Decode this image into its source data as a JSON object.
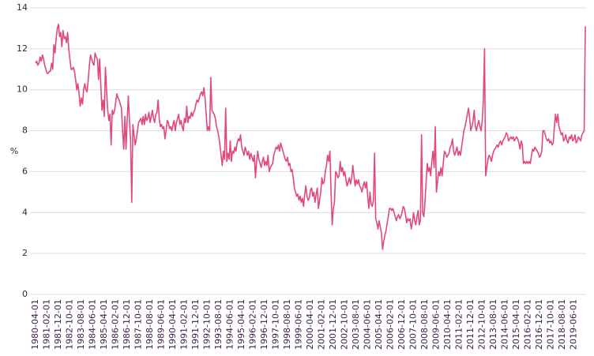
{
  "chart_data": {
    "type": "line",
    "y_label": "%",
    "color": "#e14a78",
    "grid": true,
    "ylim": [
      0,
      14
    ],
    "yticks": [
      0,
      2,
      4,
      6,
      8,
      10,
      12,
      14
    ],
    "categories": [
      "1980-04-01",
      null,
      null,
      null,
      null,
      null,
      null,
      null,
      null,
      null,
      "1981-02-01",
      null,
      null,
      null,
      null,
      null,
      null,
      null,
      null,
      null,
      "1981-12-01",
      null,
      null,
      null,
      null,
      null,
      null,
      null,
      null,
      null,
      "1982-10-01",
      null,
      null,
      null,
      null,
      null,
      null,
      null,
      null,
      null,
      "1983-08-01",
      null,
      null,
      null,
      null,
      null,
      null,
      null,
      null,
      null,
      "1984-06-01",
      null,
      null,
      null,
      null,
      null,
      null,
      null,
      null,
      null,
      "1985-04-01",
      null,
      null,
      null,
      null,
      null,
      null,
      null,
      null,
      null,
      "1986-02-01",
      null,
      null,
      null,
      null,
      null,
      null,
      null,
      null,
      null,
      "1986-12-01",
      null,
      null,
      null,
      null,
      null,
      null,
      null,
      null,
      null,
      "1987-10-01",
      null,
      null,
      null,
      null,
      null,
      null,
      null,
      null,
      null,
      "1988-08-01",
      null,
      null,
      null,
      null,
      null,
      null,
      null,
      null,
      null,
      "1989-06-01",
      null,
      null,
      null,
      null,
      null,
      null,
      null,
      null,
      null,
      "1990-04-01",
      null,
      null,
      null,
      null,
      null,
      null,
      null,
      null,
      null,
      "1991-02-01",
      null,
      null,
      null,
      null,
      null,
      null,
      null,
      null,
      null,
      "1991-12-01",
      null,
      null,
      null,
      null,
      null,
      null,
      null,
      null,
      null,
      "1992-10-01",
      null,
      null,
      null,
      null,
      null,
      null,
      null,
      null,
      null,
      "1993-08-01",
      null,
      null,
      null,
      null,
      null,
      null,
      null,
      null,
      null,
      "1994-06-01",
      null,
      null,
      null,
      null,
      null,
      null,
      null,
      null,
      null,
      "1995-04-01",
      null,
      null,
      null,
      null,
      null,
      null,
      null,
      null,
      null,
      "1996-02-01",
      null,
      null,
      null,
      null,
      null,
      null,
      null,
      null,
      null,
      "1996-12-01",
      null,
      null,
      null,
      null,
      null,
      null,
      null,
      null,
      null,
      "1997-10-01",
      null,
      null,
      null,
      null,
      null,
      null,
      null,
      null,
      null,
      "1998-08-01",
      null,
      null,
      null,
      null,
      null,
      null,
      null,
      null,
      null,
      "1999-06-01",
      null,
      null,
      null,
      null,
      null,
      null,
      null,
      null,
      null,
      "2000-04-01",
      null,
      null,
      null,
      null,
      null,
      null,
      null,
      null,
      null,
      "2001-02-01",
      null,
      null,
      null,
      null,
      null,
      null,
      null,
      null,
      null,
      "2001-12-01",
      null,
      null,
      null,
      null,
      null,
      null,
      null,
      null,
      null,
      "2002-10-01",
      null,
      null,
      null,
      null,
      null,
      null,
      null,
      null,
      null,
      "2003-08-01",
      null,
      null,
      null,
      null,
      null,
      null,
      null,
      null,
      null,
      "2004-06-01",
      null,
      null,
      null,
      null,
      null,
      null,
      null,
      null,
      null,
      "2005-04-01",
      null,
      null,
      null,
      null,
      null,
      null,
      null,
      null,
      null,
      "2006-02-01",
      null,
      null,
      null,
      null,
      null,
      null,
      null,
      null,
      null,
      "2006-12-01",
      null,
      null,
      null,
      null,
      null,
      null,
      null,
      null,
      null,
      "2007-10-01",
      null,
      null,
      null,
      null,
      null,
      null,
      null,
      null,
      null,
      "2008-08-01",
      null,
      null,
      null,
      null,
      null,
      null,
      null,
      null,
      null,
      "2009-06-01",
      null,
      null,
      null,
      null,
      null,
      null,
      null,
      null,
      null,
      "2010-04-01",
      null,
      null,
      null,
      null,
      null,
      null,
      null,
      null,
      null,
      "2011-02-01",
      null,
      null,
      null,
      null,
      null,
      null,
      null,
      null,
      null,
      "2011-12-01",
      null,
      null,
      null,
      null,
      null,
      null,
      null,
      null,
      null,
      "2012-10-01",
      null,
      null,
      null,
      null,
      null,
      null,
      null,
      null,
      null,
      "2013-08-01",
      null,
      null,
      null,
      null,
      null,
      null,
      null,
      null,
      null,
      "2014-06-01",
      null,
      null,
      null,
      null,
      null,
      null,
      null,
      null,
      null,
      "2015-04-01",
      null,
      null,
      null,
      null,
      null,
      null,
      null,
      null,
      null,
      "2016-02-01",
      null,
      null,
      null,
      null,
      null,
      null,
      null,
      null,
      null,
      "2016-12-01",
      null,
      null,
      null,
      null,
      null,
      null,
      null,
      null,
      null,
      "2017-10-01",
      null,
      null,
      null,
      null,
      null,
      null,
      null,
      null,
      null,
      "2018-08-01",
      null,
      null,
      null,
      null,
      null,
      null,
      null,
      null,
      null,
      "2019-06-01",
      null,
      null,
      null,
      null,
      null,
      null,
      null,
      null,
      null,
      null
    ],
    "values": [
      11.3,
      11.4,
      11.2,
      11.3,
      11.6,
      11.4,
      11.7,
      11.5,
      11.2,
      11.0,
      10.8,
      10.8,
      10.9,
      10.9,
      11.3,
      11.0,
      12.2,
      11.8,
      12.5,
      13.0,
      13.2,
      12.6,
      12.8,
      12.1,
      12.9,
      12.5,
      12.6,
      12.3,
      12.8,
      12.0,
      11.5,
      11.0,
      11.0,
      11.1,
      10.9,
      10.5,
      10.0,
      10.3,
      9.8,
      9.2,
      9.6,
      9.3,
      10.0,
      10.3,
      10.0,
      9.9,
      10.5,
      11.2,
      11.7,
      11.5,
      11.3,
      11.2,
      11.8,
      11.6,
      11.5,
      10.5,
      11.5,
      10.2,
      9.0,
      9.5,
      8.7,
      11.1,
      10.0,
      9.0,
      8.5,
      8.8,
      7.3,
      9.0,
      8.8,
      9.0,
      9.4,
      9.8,
      9.6,
      9.5,
      9.3,
      9.1,
      8.0,
      7.1,
      8.7,
      7.1,
      8.5,
      9.7,
      8.5,
      7.5,
      4.5,
      8.3,
      7.8,
      7.3,
      7.6,
      8.0,
      8.4,
      8.5,
      8.6,
      8.3,
      8.7,
      8.3,
      8.8,
      8.5,
      8.6,
      8.9,
      8.4,
      8.7,
      9.0,
      8.6,
      8.4,
      8.8,
      8.9,
      9.5,
      8.6,
      8.2,
      8.3,
      8.1,
      8.2,
      7.6,
      8.0,
      8.5,
      8.4,
      8.1,
      8.2,
      8.0,
      8.3,
      8.5,
      8.0,
      8.4,
      8.6,
      8.8,
      8.3,
      8.5,
      8.2,
      8.0,
      8.6,
      8.4,
      9.2,
      8.4,
      8.7,
      8.6,
      8.9,
      8.7,
      8.9,
      9.0,
      9.3,
      9.5,
      9.4,
      9.6,
      9.8,
      9.9,
      9.7,
      10.1,
      9.6,
      8.8,
      8.0,
      8.2,
      8.0,
      10.6,
      9.0,
      8.9,
      8.8,
      8.6,
      8.2,
      8.0,
      7.7,
      7.3,
      6.8,
      6.3,
      7.0,
      6.6,
      9.1,
      6.5,
      6.9,
      6.6,
      7.5,
      6.5,
      7.0,
      6.9,
      7.2,
      7.0,
      7.4,
      7.6,
      7.5,
      7.8,
      7.2,
      7.0,
      6.8,
      7.2,
      7.0,
      6.8,
      7.0,
      6.6,
      6.9,
      6.7,
      6.5,
      6.8,
      5.7,
      6.5,
      7.0,
      6.6,
      6.4,
      6.2,
      6.5,
      6.7,
      6.3,
      6.5,
      6.3,
      6.8,
      6.0,
      6.2,
      6.3,
      6.4,
      6.8,
      7.0,
      7.2,
      7.1,
      7.3,
      7.0,
      7.4,
      7.2,
      7.0,
      6.8,
      6.6,
      6.5,
      6.7,
      6.3,
      6.4,
      6.0,
      6.1,
      5.7,
      5.2,
      5.0,
      4.8,
      4.9,
      4.6,
      4.8,
      4.5,
      4.7,
      4.3,
      4.9,
      5.3,
      4.8,
      4.6,
      4.7,
      5.1,
      5.2,
      4.8,
      5.0,
      4.5,
      4.9,
      5.2,
      4.2,
      4.6,
      5.0,
      5.7,
      5.4,
      5.5,
      6.0,
      6.3,
      6.8,
      6.5,
      7.0,
      5.0,
      3.4,
      4.2,
      4.5,
      6.0,
      5.9,
      5.7,
      5.8,
      6.5,
      6.0,
      6.2,
      5.8,
      6.0,
      5.6,
      5.3,
      5.5,
      5.7,
      5.4,
      5.7,
      6.3,
      5.8,
      5.3,
      5.6,
      5.4,
      5.6,
      5.3,
      5.2,
      5.0,
      5.3,
      5.5,
      5.2,
      5.5,
      4.8,
      4.2,
      5.0,
      4.4,
      4.3,
      4.6,
      6.9,
      3.7,
      3.5,
      3.2,
      3.6,
      3.3,
      3.0,
      2.2,
      2.6,
      2.9,
      3.1,
      3.5,
      3.8,
      4.2,
      4.2,
      4.1,
      4.2,
      4.0,
      3.8,
      3.6,
      3.8,
      3.9,
      3.7,
      3.8,
      4.0,
      4.3,
      4.2,
      3.9,
      3.5,
      3.7,
      3.6,
      3.7,
      3.2,
      3.5,
      4.0,
      3.6,
      3.4,
      3.8,
      4.1,
      3.4,
      3.6,
      7.8,
      4.0,
      3.8,
      4.5,
      5.5,
      6.4,
      6.0,
      6.2,
      5.8,
      6.5,
      7.0,
      6.2,
      8.2,
      5.0,
      5.5,
      6.0,
      5.8,
      6.2,
      5.8,
      6.4,
      7.0,
      6.9,
      6.7,
      6.8,
      6.9,
      7.2,
      7.3,
      7.6,
      7.0,
      6.8,
      7.0,
      7.2,
      6.8,
      7.0,
      6.8,
      7.2,
      7.6,
      8.0,
      8.2,
      8.5,
      8.8,
      9.1,
      8.6,
      8.0,
      8.2,
      8.5,
      9.0,
      8.2,
      8.0,
      8.3,
      8.5,
      8.2,
      8.0,
      8.5,
      9.5,
      12.0,
      5.8,
      6.2,
      6.6,
      6.8,
      6.7,
      6.5,
      6.8,
      7.0,
      7.1,
      7.2,
      7.3,
      7.2,
      7.4,
      7.5,
      7.3,
      7.5,
      7.6,
      7.7,
      7.9,
      7.8,
      7.5,
      7.6,
      7.7,
      7.6,
      7.7,
      7.5,
      7.6,
      7.7,
      7.6,
      7.4,
      7.1,
      7.5,
      7.3,
      6.4,
      6.5,
      6.4,
      6.5,
      6.4,
      6.5,
      6.4,
      6.8,
      7.1,
      7.0,
      7.2,
      7.1,
      7.0,
      6.9,
      6.7,
      6.8,
      7.0,
      8.0,
      8.0,
      7.8,
      7.6,
      7.5,
      7.6,
      7.4,
      7.5,
      7.3,
      7.4,
      8.2,
      8.8,
      8.4,
      8.8,
      8.2,
      8.0,
      7.8,
      7.9,
      7.5,
      7.6,
      7.8,
      7.5,
      7.4,
      7.7,
      7.6,
      7.8,
      7.5,
      7.6,
      7.8,
      7.4,
      7.5,
      7.7,
      7.6,
      7.5,
      7.8,
      7.9,
      8.0,
      13.1
    ]
  }
}
